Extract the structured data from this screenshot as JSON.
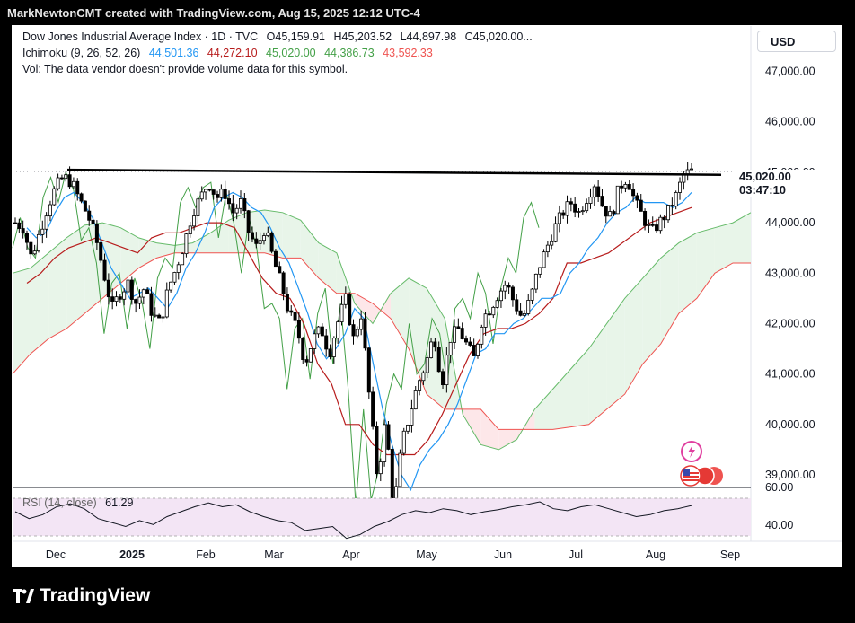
{
  "header": {
    "attribution": "MarkNewtonCMT created with TradingView.com, Aug 15, 2025 12:12 UTC-4"
  },
  "legend": {
    "symbol_line": {
      "name": "Dow Jones Industrial Average Index · 1D · TVC",
      "open": "O45,159.91",
      "high": "H45,203.52",
      "low": "L44,897.98",
      "close": "C45,020.00..."
    },
    "ichimoku_line": {
      "label": "Ichimoku (9, 26, 52, 26)",
      "values": [
        "44,501.36",
        "44,272.10",
        "45,020.00",
        "44,386.73",
        "43,592.33"
      ]
    },
    "volume_note": "Vol: The data vendor doesn't provide volume data for this symbol.",
    "rsi_label": "RSI (14, close)",
    "rsi_value": "61.29"
  },
  "currency_button": "USD",
  "price_tag": {
    "price": "45,020.00",
    "countdown": "03:47:10"
  },
  "footer": {
    "brand": "TradingView"
  },
  "colors": {
    "conversion": "#2196f3",
    "base": "#b71c1c",
    "lagging": "#43a047",
    "span_a": "#66bb6a",
    "span_b": "#ef5350",
    "cloud_bull": "#e8f5e9",
    "cloud_bear": "#fde7e9",
    "rsi": "#131722",
    "rsi_band": "#f3e5f5",
    "candles": "#000000",
    "resistance": "#000000"
  },
  "chart_data": [
    {
      "type": "candlestick",
      "title": "Dow Jones Industrial Average Index · 1D · TVC",
      "indicators": [
        "Ichimoku (9, 26, 52, 26)"
      ],
      "x_ticks": [
        "Dec",
        "2025",
        "Feb",
        "Mar",
        "Apr",
        "May",
        "Jun",
        "Jul",
        "Aug",
        "Sep"
      ],
      "y_ticks": [
        "39,000.00",
        "40,000.00",
        "41,000.00",
        "42,000.00",
        "43,000.00",
        "44,000.00",
        "45,000.00",
        "46,000.00",
        "47,000.00"
      ],
      "ylim": [
        38750,
        47900
      ],
      "last_price": 45020.0,
      "resistance_level": 44950,
      "grid": false,
      "close_path": [
        44000,
        43900,
        43300,
        43800,
        44300,
        44700,
        44910,
        44800,
        44450,
        44150,
        43700,
        43000,
        42300,
        42600,
        42800,
        42400,
        42700,
        42200,
        42000,
        42700,
        43100,
        43600,
        44200,
        44500,
        44800,
        44500,
        44600,
        44200,
        44400,
        43800,
        43500,
        43900,
        43300,
        42800,
        42200,
        41900,
        41200,
        41700,
        41900,
        41400,
        42000,
        42500,
        41700,
        42200,
        40500,
        38900,
        40100,
        38300,
        39600,
        40200,
        40800,
        41200,
        41800,
        40800,
        41700,
        41900,
        41600,
        41300,
        42100,
        42300,
        42600,
        42800,
        42400,
        42100,
        42500,
        43100,
        43500,
        43900,
        44200,
        44400,
        44200,
        44500,
        44800,
        44300,
        44100,
        44700,
        44900,
        44400,
        44100,
        43800,
        44000,
        44200,
        44500,
        44950,
        45020
      ],
      "ichimoku_conversion_path": [
        43900,
        43700,
        43800,
        44200,
        44500,
        44600,
        44400,
        44100,
        43600,
        43100,
        42800,
        42500,
        42600,
        42700,
        42500,
        42300,
        42600,
        43100,
        43400,
        43800,
        44300,
        44500,
        44600,
        44500,
        44300,
        44200,
        43900,
        43500,
        43200,
        42700,
        42200,
        41600,
        41300,
        41500,
        41800,
        42300,
        42100,
        41200,
        40300,
        39600,
        39000,
        38700,
        39200,
        39500,
        39700,
        40000,
        40400,
        40900,
        41400,
        41500,
        41800,
        41800,
        42000,
        42100,
        42300,
        42500,
        42500,
        42600,
        43000,
        43200,
        43500,
        43700,
        44000,
        44200,
        44300,
        44500,
        44400,
        44400,
        44400,
        44300,
        44400,
        44600
      ],
      "ichimoku_base_path": [
        42800,
        43000,
        43300,
        43500,
        43600,
        43700,
        43600,
        43500,
        43400,
        43700,
        43800,
        43800,
        43900,
        44000,
        44000,
        43900,
        43400,
        42900,
        42600,
        42500,
        42000,
        41200,
        40800,
        40000,
        40000,
        39600,
        39400,
        39400,
        39400,
        39700,
        40200,
        40800,
        41400,
        41800,
        41900,
        41900,
        42000,
        42200,
        42500,
        43200,
        43200,
        43300,
        43400,
        43600,
        43800,
        44000,
        44100,
        44200,
        44300
      ]
    },
    {
      "type": "line",
      "title": "RSI (14, close)",
      "y_ticks": [
        "40.00",
        "60.00"
      ],
      "last_value": 61.29,
      "values": [
        55,
        48,
        52,
        60,
        63,
        58,
        48,
        44,
        40,
        46,
        42,
        50,
        55,
        60,
        64,
        60,
        62,
        55,
        50,
        46,
        44,
        36,
        38,
        40,
        28,
        32,
        40,
        45,
        52,
        56,
        54,
        58,
        56,
        52,
        55,
        57,
        60,
        62,
        65,
        58,
        56,
        60,
        62,
        58,
        54,
        50,
        52,
        56,
        58,
        61.29
      ]
    }
  ]
}
